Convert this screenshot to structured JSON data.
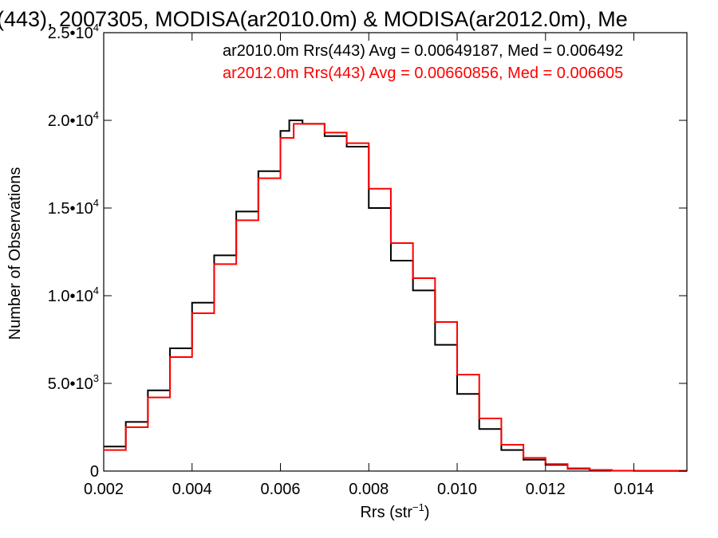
{
  "chart_data": {
    "type": "line",
    "title": "(443), 2007305, MODISA(ar2010.0m) & MODISA(ar2012.0m), Me",
    "xlabel": "Rrs (str",
    "xlabel_sup": "−1",
    "xlabel_end": ")",
    "ylabel": "Number of Observations",
    "xlim": [
      0.002,
      0.0152
    ],
    "ylim": [
      0,
      25000
    ],
    "x_ticks": [
      {
        "value": 0.002,
        "label": "0.002"
      },
      {
        "value": 0.004,
        "label": "0.004"
      },
      {
        "value": 0.006,
        "label": "0.006"
      },
      {
        "value": 0.008,
        "label": "0.008"
      },
      {
        "value": 0.01,
        "label": "0.010"
      },
      {
        "value": 0.012,
        "label": "0.012"
      },
      {
        "value": 0.014,
        "label": "0.014"
      }
    ],
    "y_ticks": [
      {
        "value": 0,
        "mant": "0",
        "exp": ""
      },
      {
        "value": 5000,
        "mant": "5.0•10",
        "exp": "3"
      },
      {
        "value": 10000,
        "mant": "1.0•10",
        "exp": "4"
      },
      {
        "value": 15000,
        "mant": "1.5•10",
        "exp": "4"
      },
      {
        "value": 20000,
        "mant": "2.0•10",
        "exp": "4"
      },
      {
        "value": 25000,
        "mant": "2.5•10",
        "exp": "4"
      }
    ],
    "grid": false,
    "legend_position": "top-right",
    "series": [
      {
        "name": "ar2010.0m Rrs(443) Avg = 0.00649187, Med = 0.006492",
        "color": "#000000",
        "x": [
          0.002,
          0.0025,
          0.003,
          0.0035,
          0.004,
          0.0045,
          0.005,
          0.0055,
          0.006,
          0.0062,
          0.0065,
          0.007,
          0.0075,
          0.008,
          0.0085,
          0.009,
          0.0095,
          0.01,
          0.0105,
          0.011,
          0.0115,
          0.012,
          0.0125,
          0.013,
          0.0135,
          0.014,
          0.0152
        ],
        "values": [
          1400,
          2800,
          4600,
          7000,
          9600,
          12300,
          14800,
          17100,
          19400,
          20000,
          19800,
          19100,
          18500,
          15000,
          12000,
          10300,
          7200,
          4400,
          2400,
          1200,
          650,
          350,
          130,
          50,
          20,
          10,
          5
        ]
      },
      {
        "name": "ar2012.0m Rrs(443) Avg = 0.00660856, Med = 0.006605",
        "color": "#ff0000",
        "x": [
          0.002,
          0.0025,
          0.003,
          0.0035,
          0.004,
          0.0045,
          0.005,
          0.0055,
          0.006,
          0.0063,
          0.0066,
          0.007,
          0.0075,
          0.008,
          0.0085,
          0.009,
          0.0095,
          0.01,
          0.0105,
          0.011,
          0.0115,
          0.012,
          0.0125,
          0.013,
          0.0135,
          0.014,
          0.0152
        ],
        "values": [
          1200,
          2500,
          4200,
          6500,
          9000,
          11800,
          14300,
          16700,
          19000,
          19800,
          19800,
          19300,
          18700,
          16100,
          13000,
          11000,
          8500,
          5500,
          3000,
          1500,
          750,
          400,
          160,
          60,
          25,
          10,
          5
        ]
      }
    ]
  }
}
